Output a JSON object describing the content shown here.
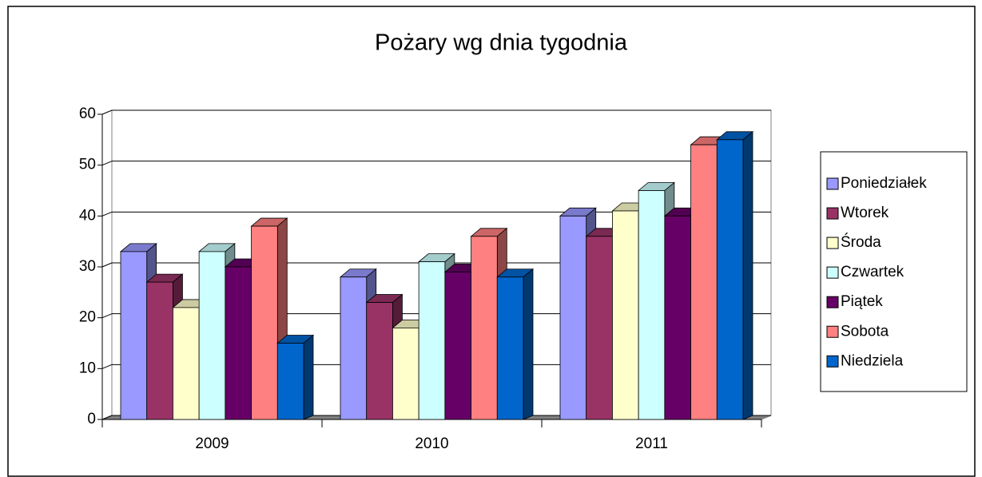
{
  "chart_data": {
    "type": "bar3d",
    "title": "Pożary wg dnia tygodnia",
    "categories": [
      "2009",
      "2010",
      "2011"
    ],
    "series": [
      {
        "name": "Poniedziałek",
        "color": "#9999ff",
        "values": [
          33,
          28,
          40
        ]
      },
      {
        "name": "Wtorek",
        "color": "#993366",
        "values": [
          27,
          23,
          36
        ]
      },
      {
        "name": "Środa",
        "color": "#ffffcc",
        "values": [
          22,
          18,
          41
        ]
      },
      {
        "name": "Czwartek",
        "color": "#ccffff",
        "values": [
          33,
          31,
          45
        ]
      },
      {
        "name": "Piątek",
        "color": "#660066",
        "values": [
          30,
          29,
          40
        ]
      },
      {
        "name": "Sobota",
        "color": "#ff8080",
        "values": [
          38,
          36,
          54
        ]
      },
      {
        "name": "Niedziela",
        "color": "#0066cc",
        "values": [
          15,
          28,
          55
        ]
      }
    ],
    "ylim": [
      0,
      60
    ],
    "yticks": [
      0,
      10,
      20,
      30,
      40,
      50,
      60
    ],
    "grid": true,
    "legend": "right"
  }
}
